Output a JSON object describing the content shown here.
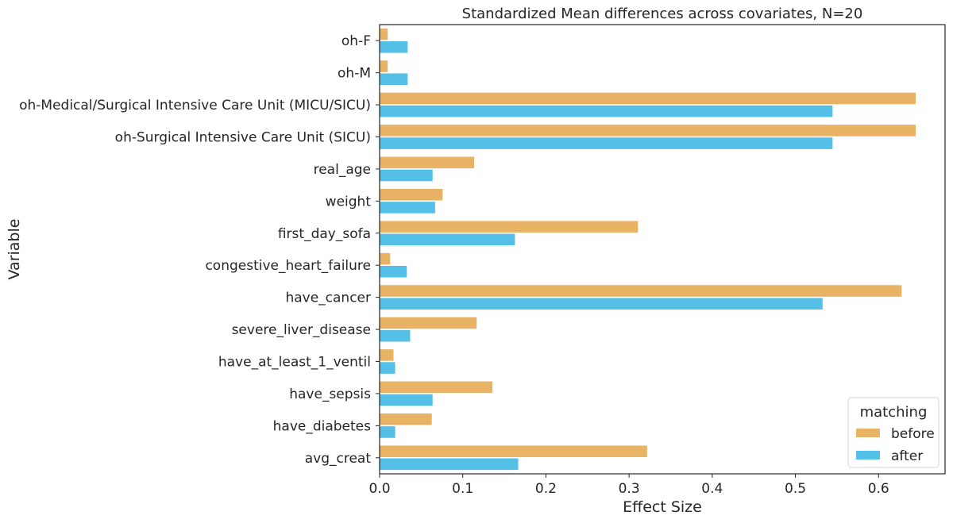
{
  "chart_data": {
    "type": "bar",
    "orientation": "horizontal",
    "title": "Standardized Mean differences across covariates, N=20",
    "xlabel": "Effect Size",
    "ylabel": "Variable",
    "xlim": [
      0,
      0.68
    ],
    "xticks": [
      "0.0",
      "0.1",
      "0.2",
      "0.3",
      "0.4",
      "0.5",
      "0.6"
    ],
    "categories": [
      "oh-F",
      "oh-M",
      "oh-Medical/Surgical Intensive Care Unit (MICU/SICU)",
      "oh-Surgical Intensive Care Unit (SICU)",
      "real_age",
      "weight",
      "first_day_sofa",
      "congestive_heart_failure",
      "have_cancer",
      "severe_liver_disease",
      "have_at_least_1_ventil",
      "have_sepsis",
      "have_diabetes",
      "avg_creat"
    ],
    "series": [
      {
        "name": "before",
        "color": "#e8b365",
        "values": [
          0.01,
          0.01,
          0.645,
          0.645,
          0.114,
          0.076,
          0.311,
          0.013,
          0.628,
          0.117,
          0.017,
          0.136,
          0.063,
          0.322
        ]
      },
      {
        "name": "after",
        "color": "#54c0e8",
        "values": [
          0.034,
          0.034,
          0.545,
          0.545,
          0.064,
          0.067,
          0.163,
          0.033,
          0.533,
          0.037,
          0.019,
          0.064,
          0.019,
          0.167
        ]
      }
    ],
    "grid": false,
    "legend": {
      "title": "matching",
      "placement": "lower-right"
    }
  }
}
